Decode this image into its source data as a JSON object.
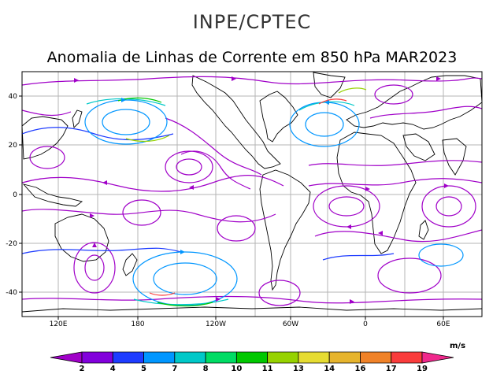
{
  "header": {
    "organization": "INPE/CPTEC",
    "title": "Anomalia de Linhas de Corrente em 850 hPa MAR2023"
  },
  "map": {
    "lat_ticks": [
      "40",
      "20",
      "0",
      "-20",
      "-40"
    ],
    "lon_ticks": [
      "120E",
      "180",
      "120W",
      "60W",
      "0",
      "60E"
    ]
  },
  "colorbar": {
    "unit": "m/s",
    "labels": [
      "2",
      "4",
      "5",
      "7",
      "8",
      "10",
      "11",
      "13",
      "14",
      "16",
      "17",
      "19"
    ],
    "colors": [
      "#a000c8",
      "#8200dc",
      "#1e3cff",
      "#0096ff",
      "#00c8c8",
      "#00dc64",
      "#00c800",
      "#96d200",
      "#e6dc32",
      "#e6b42d",
      "#f08228",
      "#fa3c3c",
      "#f0288c"
    ]
  },
  "colors": {
    "stream_primary": "#a000c8",
    "stream_secondary": "#0096ff"
  }
}
